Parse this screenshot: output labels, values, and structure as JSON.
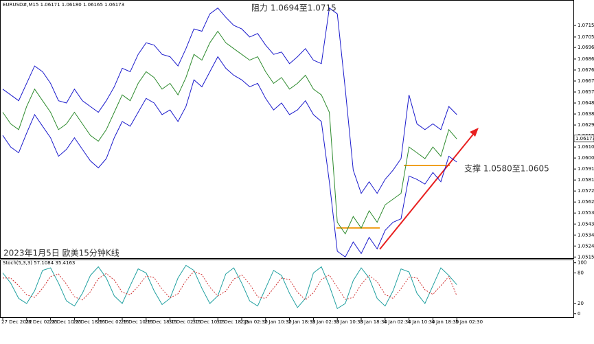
{
  "header": "EURUSD#,M15  1.06171 1.06180 1.06165 1.06173",
  "chart_data": [
    {
      "type": "line",
      "categories": [
        "27 Dec 2022",
        null,
        null,
        "28 Dec 02:15",
        null,
        null,
        "28 Dec 10:15",
        null,
        null,
        "28 Dec 18:15",
        null,
        null,
        "29 Dec 02:15",
        null,
        null,
        "29 Dec 10:15",
        null,
        null,
        "29 Dec 18:15",
        null,
        null,
        "30 Dec 02:15",
        null,
        null,
        "30 Dec 10:15",
        null,
        null,
        "30 Dec 18:15",
        null,
        null,
        "2 Jan 02:30",
        null,
        null,
        "2 Jan 10:30",
        null,
        null,
        "2 Jan 18:30",
        null,
        null,
        "3 Jan 02:30",
        null,
        null,
        "3 Jan 10:30",
        null,
        null,
        "3 Jan 18:30",
        null,
        null,
        "4 Jan 02:30",
        null,
        null,
        "4 Jan 10:30",
        null,
        null,
        "4 Jan 18:30",
        null,
        null,
        "5 Jan 02:30"
      ],
      "series": [
        {
          "color": "#2e8b2e",
          "values": [
            1.064,
            1.063,
            1.0625,
            1.0645,
            1.066,
            1.065,
            1.064,
            1.0625,
            1.063,
            1.064,
            1.063,
            1.062,
            1.0615,
            1.0625,
            1.064,
            1.0655,
            1.065,
            1.0665,
            1.0675,
            1.067,
            1.066,
            1.0665,
            1.0655,
            1.067,
            1.069,
            1.0685,
            1.07,
            1.071,
            1.07,
            1.0695,
            1.069,
            1.0685,
            1.0688,
            1.0675,
            1.0665,
            1.067,
            1.066,
            1.0665,
            1.0672,
            1.066,
            1.0655,
            1.064,
            1.0545,
            1.0535,
            1.055,
            1.054,
            1.0555,
            1.0545,
            1.056,
            1.0565,
            1.057,
            1.061,
            1.0605,
            1.06,
            1.061,
            1.0602,
            1.0625,
            1.0617
          ]
        },
        {
          "color": "#1a1acc",
          "values": [
            1.066,
            1.0655,
            1.065,
            1.0665,
            1.068,
            1.0675,
            1.0665,
            1.065,
            1.0648,
            1.066,
            1.065,
            1.0645,
            1.064,
            1.065,
            1.0662,
            1.0678,
            1.0675,
            1.069,
            1.07,
            1.0698,
            1.069,
            1.0688,
            1.068,
            1.0695,
            1.0712,
            1.071,
            1.0725,
            1.073,
            1.0722,
            1.0715,
            1.0712,
            1.0705,
            1.0708,
            1.0698,
            1.069,
            1.0692,
            1.0682,
            1.0688,
            1.0695,
            1.0685,
            1.0682,
            1.073,
            1.0725,
            1.066,
            1.059,
            1.057,
            1.058,
            1.057,
            1.0582,
            1.059,
            1.06,
            1.0655,
            1.063,
            1.0625,
            1.063,
            1.0625,
            1.0645,
            1.0638
          ]
        },
        {
          "color": "#1a1acc",
          "values": [
            1.062,
            1.061,
            1.0605,
            1.0622,
            1.0638,
            1.0628,
            1.0618,
            1.0602,
            1.0608,
            1.0618,
            1.0608,
            1.0598,
            1.0592,
            1.06,
            1.0618,
            1.0632,
            1.0628,
            1.064,
            1.0652,
            1.0648,
            1.0638,
            1.0642,
            1.0632,
            1.0645,
            1.0668,
            1.0662,
            1.0675,
            1.0688,
            1.0678,
            1.0672,
            1.0668,
            1.0662,
            1.0665,
            1.0652,
            1.0642,
            1.0648,
            1.0638,
            1.0642,
            1.065,
            1.0638,
            1.0632,
            1.058,
            1.052,
            1.0515,
            1.0528,
            1.0518,
            1.0532,
            1.0522,
            1.0538,
            1.0545,
            1.0548,
            1.0585,
            1.0582,
            1.0578,
            1.0588,
            1.058,
            1.0602,
            1.0597
          ]
        }
      ],
      "ylim": [
        1.0514,
        1.0734
      ],
      "yticks": [
        {
          "value": 1.0715,
          "label": "1.07150"
        },
        {
          "value": 1.0705,
          "label": "1.07050"
        },
        {
          "value": 1.0696,
          "label": "1.06960"
        },
        {
          "value": 1.0686,
          "label": "1.06860"
        },
        1.06765,
        {
          "value": 1.0667,
          "label": "1.06670"
        },
        1.06575,
        {
          "value": 1.0648,
          "label": "1.06480"
        },
        1.06385,
        {
          "value": 1.0629,
          "label": "1.06290"
        },
        1.06195,
        {
          "value": 1.061,
          "label": "1.06100"
        },
        1.06005,
        {
          "value": 1.0591,
          "label": "1.05910"
        },
        1.05815,
        {
          "value": 1.0572,
          "label": "1.05720"
        },
        1.05625,
        {
          "value": 1.0553,
          "label": "1.05530"
        },
        1.05435,
        {
          "value": 1.0534,
          "label": "1.05340"
        },
        1.05245,
        {
          "value": 1.0515,
          "label": "1.05150"
        }
      ],
      "last_price": 1.06173,
      "annotations": [
        "阻力 1.0694至1.0715",
        "支撑 1.0580至1.0605",
        "2023年1月5日 欧美15分钟K线"
      ]
    },
    {
      "type": "line",
      "title": "Stoch(5,3,3) 57.1084 35.4163",
      "series": [
        {
          "color": "#20a0a0",
          "values": [
            80,
            60,
            30,
            20,
            45,
            85,
            90,
            60,
            25,
            15,
            40,
            75,
            92,
            70,
            35,
            20,
            55,
            88,
            80,
            45,
            18,
            30,
            70,
            95,
            85,
            50,
            20,
            35,
            78,
            90,
            60,
            25,
            15,
            50,
            85,
            75,
            40,
            12,
            30,
            80,
            92,
            55,
            10,
            20,
            65,
            90,
            70,
            30,
            15,
            45,
            88,
            82,
            40,
            20,
            55,
            90,
            75,
            57
          ]
        },
        {
          "color": "#d03030",
          "style": "dotted",
          "values": [
            70,
            70,
            55,
            37,
            32,
            50,
            73,
            78,
            58,
            33,
            27,
            43,
            69,
            79,
            66,
            42,
            37,
            54,
            74,
            71,
            48,
            31,
            39,
            65,
            83,
            77,
            52,
            35,
            44,
            68,
            76,
            58,
            33,
            30,
            50,
            70,
            67,
            42,
            27,
            41,
            67,
            76,
            52,
            28,
            32,
            58,
            75,
            63,
            38,
            30,
            49,
            72,
            70,
            47,
            38,
            55,
            73,
            35
          ]
        }
      ],
      "ylim": [
        -7,
        105
      ],
      "yticks": [
        100,
        80,
        20,
        0
      ]
    }
  ]
}
